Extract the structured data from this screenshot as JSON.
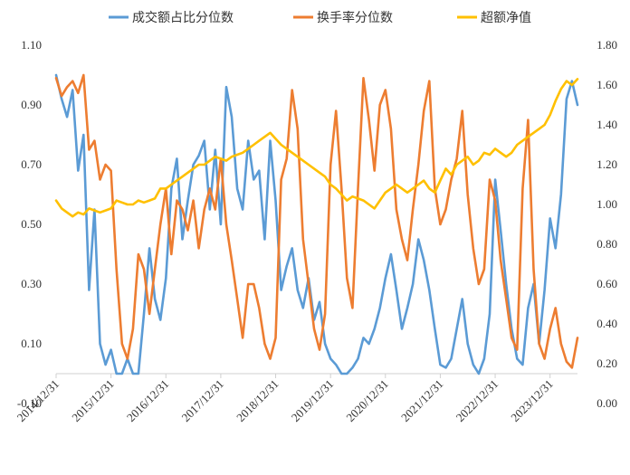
{
  "chart_data": {
    "type": "line",
    "x_tick_labels": [
      "2014/12/31",
      "2015/12/31",
      "2016/12/31",
      "2017/12/31",
      "2018/12/31",
      "2019/12/31",
      "2020/12/31",
      "2021/12/31",
      "2022/12/31",
      "2023/12/31"
    ],
    "x_range": [
      2015.0,
      2024.5
    ],
    "y_left": {
      "ticks": [
        -0.1,
        0.1,
        0.3,
        0.5,
        0.7,
        0.9,
        1.1
      ],
      "tick_labels": [
        "-0.10",
        "0.10",
        "0.30",
        "0.50",
        "0.70",
        "0.90",
        "1.10"
      ],
      "range": [
        -0.1,
        1.1
      ]
    },
    "y_right": {
      "ticks": [
        0.0,
        0.2,
        0.4,
        0.6,
        0.8,
        1.0,
        1.2,
        1.4,
        1.6,
        1.8
      ],
      "tick_labels": [
        "0.00",
        "0.20",
        "0.40",
        "0.60",
        "0.80",
        "1.00",
        "1.20",
        "1.40",
        "1.60",
        "1.80"
      ],
      "range": [
        0.0,
        1.8
      ]
    },
    "legend_position": "top-center",
    "grid": false,
    "series": [
      {
        "name": "成交额占比分位数",
        "axis": "left",
        "color": "#5B9BD5",
        "points": [
          [
            2015.0,
            1.0
          ],
          [
            2015.1,
            0.92
          ],
          [
            2015.2,
            0.86
          ],
          [
            2015.3,
            0.95
          ],
          [
            2015.4,
            0.68
          ],
          [
            2015.5,
            0.8
          ],
          [
            2015.6,
            0.28
          ],
          [
            2015.7,
            0.55
          ],
          [
            2015.8,
            0.1
          ],
          [
            2015.9,
            0.03
          ],
          [
            2016.0,
            0.08
          ],
          [
            2016.1,
            0.0
          ],
          [
            2016.2,
            0.0
          ],
          [
            2016.3,
            0.05
          ],
          [
            2016.4,
            0.0
          ],
          [
            2016.5,
            0.0
          ],
          [
            2016.6,
            0.2
          ],
          [
            2016.7,
            0.42
          ],
          [
            2016.8,
            0.25
          ],
          [
            2016.9,
            0.18
          ],
          [
            2017.0,
            0.32
          ],
          [
            2017.1,
            0.62
          ],
          [
            2017.2,
            0.72
          ],
          [
            2017.3,
            0.45
          ],
          [
            2017.4,
            0.58
          ],
          [
            2017.5,
            0.7
          ],
          [
            2017.6,
            0.73
          ],
          [
            2017.7,
            0.78
          ],
          [
            2017.8,
            0.55
          ],
          [
            2017.9,
            0.75
          ],
          [
            2018.0,
            0.5
          ],
          [
            2018.1,
            0.96
          ],
          [
            2018.2,
            0.86
          ],
          [
            2018.3,
            0.62
          ],
          [
            2018.4,
            0.55
          ],
          [
            2018.5,
            0.78
          ],
          [
            2018.6,
            0.65
          ],
          [
            2018.7,
            0.68
          ],
          [
            2018.8,
            0.45
          ],
          [
            2018.9,
            0.78
          ],
          [
            2019.0,
            0.58
          ],
          [
            2019.1,
            0.28
          ],
          [
            2019.2,
            0.36
          ],
          [
            2019.3,
            0.42
          ],
          [
            2019.4,
            0.28
          ],
          [
            2019.5,
            0.22
          ],
          [
            2019.6,
            0.32
          ],
          [
            2019.7,
            0.18
          ],
          [
            2019.8,
            0.24
          ],
          [
            2019.9,
            0.1
          ],
          [
            2020.0,
            0.05
          ],
          [
            2020.1,
            0.03
          ],
          [
            2020.2,
            0.0
          ],
          [
            2020.3,
            0.0
          ],
          [
            2020.4,
            0.02
          ],
          [
            2020.5,
            0.05
          ],
          [
            2020.6,
            0.12
          ],
          [
            2020.7,
            0.1
          ],
          [
            2020.8,
            0.15
          ],
          [
            2020.9,
            0.22
          ],
          [
            2021.0,
            0.32
          ],
          [
            2021.1,
            0.4
          ],
          [
            2021.2,
            0.28
          ],
          [
            2021.3,
            0.15
          ],
          [
            2021.4,
            0.22
          ],
          [
            2021.5,
            0.3
          ],
          [
            2021.6,
            0.45
          ],
          [
            2021.7,
            0.38
          ],
          [
            2021.8,
            0.28
          ],
          [
            2021.9,
            0.15
          ],
          [
            2022.0,
            0.03
          ],
          [
            2022.1,
            0.02
          ],
          [
            2022.2,
            0.05
          ],
          [
            2022.3,
            0.15
          ],
          [
            2022.4,
            0.25
          ],
          [
            2022.5,
            0.1
          ],
          [
            2022.6,
            0.03
          ],
          [
            2022.7,
            0.0
          ],
          [
            2022.8,
            0.05
          ],
          [
            2022.9,
            0.2
          ],
          [
            2023.0,
            0.65
          ],
          [
            2023.1,
            0.48
          ],
          [
            2023.2,
            0.3
          ],
          [
            2023.3,
            0.15
          ],
          [
            2023.4,
            0.05
          ],
          [
            2023.5,
            0.03
          ],
          [
            2023.6,
            0.22
          ],
          [
            2023.7,
            0.3
          ],
          [
            2023.8,
            0.1
          ],
          [
            2023.9,
            0.28
          ],
          [
            2024.0,
            0.52
          ],
          [
            2024.1,
            0.42
          ],
          [
            2024.2,
            0.6
          ],
          [
            2024.3,
            0.92
          ],
          [
            2024.4,
            0.98
          ],
          [
            2024.5,
            0.9
          ]
        ]
      },
      {
        "name": "换手率分位数",
        "axis": "left",
        "color": "#ED7D31",
        "points": [
          [
            2015.0,
            0.99
          ],
          [
            2015.1,
            0.93
          ],
          [
            2015.2,
            0.96
          ],
          [
            2015.3,
            0.98
          ],
          [
            2015.4,
            0.94
          ],
          [
            2015.5,
            1.0
          ],
          [
            2015.6,
            0.75
          ],
          [
            2015.7,
            0.78
          ],
          [
            2015.8,
            0.65
          ],
          [
            2015.9,
            0.7
          ],
          [
            2016.0,
            0.68
          ],
          [
            2016.1,
            0.35
          ],
          [
            2016.2,
            0.1
          ],
          [
            2016.3,
            0.05
          ],
          [
            2016.4,
            0.15
          ],
          [
            2016.5,
            0.4
          ],
          [
            2016.6,
            0.35
          ],
          [
            2016.7,
            0.2
          ],
          [
            2016.8,
            0.35
          ],
          [
            2016.9,
            0.5
          ],
          [
            2017.0,
            0.62
          ],
          [
            2017.1,
            0.4
          ],
          [
            2017.2,
            0.58
          ],
          [
            2017.3,
            0.55
          ],
          [
            2017.4,
            0.48
          ],
          [
            2017.5,
            0.58
          ],
          [
            2017.6,
            0.42
          ],
          [
            2017.7,
            0.55
          ],
          [
            2017.8,
            0.62
          ],
          [
            2017.9,
            0.55
          ],
          [
            2018.0,
            0.72
          ],
          [
            2018.1,
            0.5
          ],
          [
            2018.2,
            0.38
          ],
          [
            2018.3,
            0.25
          ],
          [
            2018.4,
            0.12
          ],
          [
            2018.5,
            0.3
          ],
          [
            2018.6,
            0.3
          ],
          [
            2018.7,
            0.22
          ],
          [
            2018.8,
            0.1
          ],
          [
            2018.9,
            0.05
          ],
          [
            2019.0,
            0.12
          ],
          [
            2019.1,
            0.65
          ],
          [
            2019.2,
            0.72
          ],
          [
            2019.3,
            0.95
          ],
          [
            2019.4,
            0.82
          ],
          [
            2019.5,
            0.45
          ],
          [
            2019.6,
            0.3
          ],
          [
            2019.7,
            0.15
          ],
          [
            2019.8,
            0.08
          ],
          [
            2019.9,
            0.2
          ],
          [
            2020.0,
            0.7
          ],
          [
            2020.1,
            0.88
          ],
          [
            2020.2,
            0.62
          ],
          [
            2020.3,
            0.32
          ],
          [
            2020.4,
            0.22
          ],
          [
            2020.5,
            0.62
          ],
          [
            2020.6,
            0.99
          ],
          [
            2020.7,
            0.85
          ],
          [
            2020.8,
            0.68
          ],
          [
            2020.9,
            0.9
          ],
          [
            2021.0,
            0.95
          ],
          [
            2021.1,
            0.82
          ],
          [
            2021.2,
            0.55
          ],
          [
            2021.3,
            0.45
          ],
          [
            2021.4,
            0.38
          ],
          [
            2021.5,
            0.55
          ],
          [
            2021.6,
            0.7
          ],
          [
            2021.7,
            0.88
          ],
          [
            2021.8,
            0.98
          ],
          [
            2021.9,
            0.62
          ],
          [
            2022.0,
            0.5
          ],
          [
            2022.1,
            0.55
          ],
          [
            2022.2,
            0.65
          ],
          [
            2022.3,
            0.72
          ],
          [
            2022.4,
            0.88
          ],
          [
            2022.5,
            0.6
          ],
          [
            2022.6,
            0.42
          ],
          [
            2022.7,
            0.3
          ],
          [
            2022.8,
            0.35
          ],
          [
            2022.9,
            0.65
          ],
          [
            2023.0,
            0.58
          ],
          [
            2023.1,
            0.38
          ],
          [
            2023.2,
            0.25
          ],
          [
            2023.3,
            0.12
          ],
          [
            2023.4,
            0.08
          ],
          [
            2023.5,
            0.62
          ],
          [
            2023.6,
            0.85
          ],
          [
            2023.7,
            0.35
          ],
          [
            2023.8,
            0.1
          ],
          [
            2023.9,
            0.05
          ],
          [
            2024.0,
            0.15
          ],
          [
            2024.1,
            0.22
          ],
          [
            2024.2,
            0.1
          ],
          [
            2024.3,
            0.04
          ],
          [
            2024.4,
            0.02
          ],
          [
            2024.5,
            0.12
          ]
        ]
      },
      {
        "name": "超额净值",
        "axis": "right",
        "color": "#FFC000",
        "points": [
          [
            2015.0,
            1.02
          ],
          [
            2015.1,
            0.98
          ],
          [
            2015.2,
            0.96
          ],
          [
            2015.3,
            0.94
          ],
          [
            2015.4,
            0.96
          ],
          [
            2015.5,
            0.95
          ],
          [
            2015.6,
            0.98
          ],
          [
            2015.7,
            0.97
          ],
          [
            2015.8,
            0.96
          ],
          [
            2015.9,
            0.97
          ],
          [
            2016.0,
            0.98
          ],
          [
            2016.1,
            1.02
          ],
          [
            2016.2,
            1.01
          ],
          [
            2016.3,
            1.0
          ],
          [
            2016.4,
            1.0
          ],
          [
            2016.5,
            1.02
          ],
          [
            2016.6,
            1.01
          ],
          [
            2016.7,
            1.02
          ],
          [
            2016.8,
            1.03
          ],
          [
            2016.9,
            1.08
          ],
          [
            2017.0,
            1.08
          ],
          [
            2017.1,
            1.1
          ],
          [
            2017.2,
            1.12
          ],
          [
            2017.3,
            1.14
          ],
          [
            2017.4,
            1.16
          ],
          [
            2017.5,
            1.18
          ],
          [
            2017.6,
            1.2
          ],
          [
            2017.7,
            1.2
          ],
          [
            2017.8,
            1.22
          ],
          [
            2017.9,
            1.24
          ],
          [
            2018.0,
            1.23
          ],
          [
            2018.1,
            1.22
          ],
          [
            2018.2,
            1.24
          ],
          [
            2018.3,
            1.25
          ],
          [
            2018.4,
            1.26
          ],
          [
            2018.5,
            1.28
          ],
          [
            2018.6,
            1.3
          ],
          [
            2018.7,
            1.32
          ],
          [
            2018.8,
            1.34
          ],
          [
            2018.9,
            1.36
          ],
          [
            2019.0,
            1.33
          ],
          [
            2019.1,
            1.3
          ],
          [
            2019.2,
            1.28
          ],
          [
            2019.3,
            1.26
          ],
          [
            2019.4,
            1.24
          ],
          [
            2019.5,
            1.22
          ],
          [
            2019.6,
            1.2
          ],
          [
            2019.7,
            1.18
          ],
          [
            2019.8,
            1.16
          ],
          [
            2019.9,
            1.14
          ],
          [
            2020.0,
            1.1
          ],
          [
            2020.1,
            1.08
          ],
          [
            2020.2,
            1.05
          ],
          [
            2020.3,
            1.02
          ],
          [
            2020.4,
            1.04
          ],
          [
            2020.5,
            1.03
          ],
          [
            2020.6,
            1.02
          ],
          [
            2020.7,
            1.0
          ],
          [
            2020.8,
            0.98
          ],
          [
            2020.9,
            1.02
          ],
          [
            2021.0,
            1.06
          ],
          [
            2021.1,
            1.08
          ],
          [
            2021.2,
            1.1
          ],
          [
            2021.3,
            1.08
          ],
          [
            2021.4,
            1.06
          ],
          [
            2021.5,
            1.08
          ],
          [
            2021.6,
            1.1
          ],
          [
            2021.7,
            1.12
          ],
          [
            2021.8,
            1.08
          ],
          [
            2021.9,
            1.06
          ],
          [
            2022.0,
            1.12
          ],
          [
            2022.1,
            1.18
          ],
          [
            2022.2,
            1.15
          ],
          [
            2022.3,
            1.2
          ],
          [
            2022.4,
            1.22
          ],
          [
            2022.5,
            1.24
          ],
          [
            2022.6,
            1.2
          ],
          [
            2022.7,
            1.22
          ],
          [
            2022.8,
            1.26
          ],
          [
            2022.9,
            1.25
          ],
          [
            2023.0,
            1.28
          ],
          [
            2023.1,
            1.26
          ],
          [
            2023.2,
            1.24
          ],
          [
            2023.3,
            1.26
          ],
          [
            2023.4,
            1.3
          ],
          [
            2023.5,
            1.32
          ],
          [
            2023.6,
            1.34
          ],
          [
            2023.7,
            1.36
          ],
          [
            2023.8,
            1.38
          ],
          [
            2023.9,
            1.4
          ],
          [
            2024.0,
            1.45
          ],
          [
            2024.1,
            1.52
          ],
          [
            2024.2,
            1.58
          ],
          [
            2024.3,
            1.62
          ],
          [
            2024.4,
            1.6
          ],
          [
            2024.5,
            1.63
          ]
        ]
      }
    ]
  }
}
